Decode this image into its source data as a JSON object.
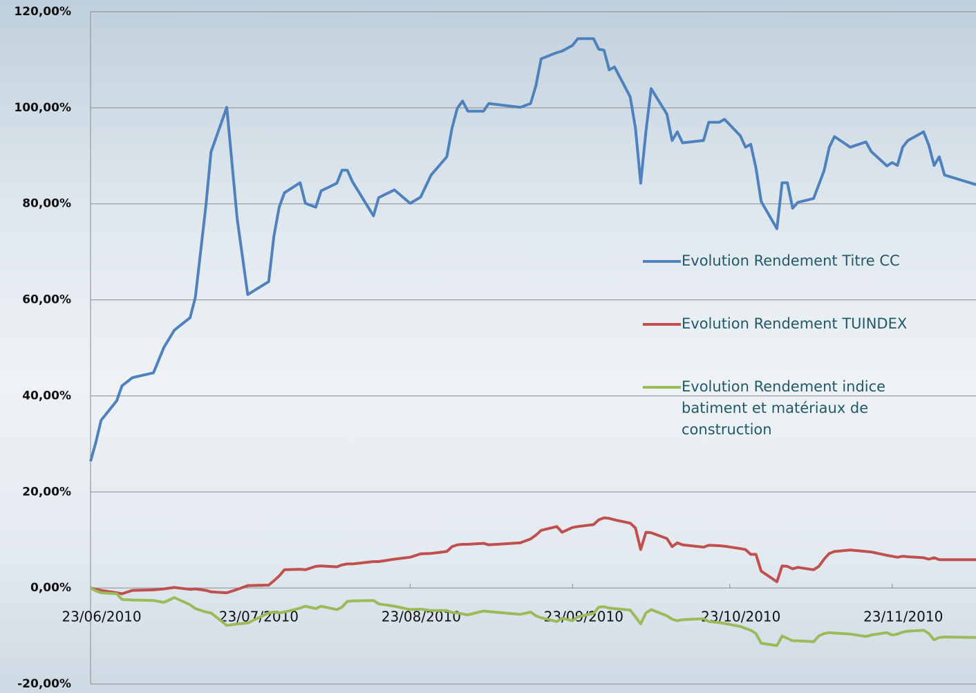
{
  "chart_data": {
    "type": "line",
    "x": [
      "23/06/2010",
      "24/06/2010",
      "25/06/2010",
      "28/06/2010",
      "29/06/2010",
      "01/07/2010",
      "05/07/2010",
      "07/07/2010",
      "09/07/2010",
      "12/07/2010",
      "13/07/2010",
      "15/07/2010",
      "16/07/2010",
      "19/07/2010",
      "21/07/2010",
      "23/07/2010",
      "27/07/2010",
      "28/07/2010",
      "29/07/2010",
      "30/07/2010",
      "02/08/2010",
      "03/08/2010",
      "05/08/2010",
      "06/08/2010",
      "09/08/2010",
      "10/08/2010",
      "11/08/2010",
      "12/08/2010",
      "16/08/2010",
      "17/08/2010",
      "20/08/2010",
      "23/08/2010",
      "25/08/2010",
      "27/08/2010",
      "30/08/2010",
      "31/08/2010",
      "01/09/2010",
      "02/09/2010",
      "03/09/2010",
      "06/09/2010",
      "07/09/2010",
      "13/09/2010",
      "15/09/2010",
      "16/09/2010",
      "17/09/2010",
      "20/09/2010",
      "21/09/2010",
      "23/09/2010",
      "24/09/2010",
      "27/09/2010",
      "28/09/2010",
      "29/09/2010",
      "30/09/2010",
      "01/10/2010",
      "04/10/2010",
      "05/10/2010",
      "06/10/2010",
      "07/10/2010",
      "08/10/2010",
      "11/10/2010",
      "12/10/2010",
      "13/10/2010",
      "14/10/2010",
      "18/10/2010",
      "19/10/2010",
      "21/10/2010",
      "22/10/2010",
      "25/10/2010",
      "26/10/2010",
      "27/10/2010",
      "28/10/2010",
      "29/10/2010",
      "01/11/2010",
      "02/11/2010",
      "03/11/2010",
      "04/11/2010",
      "05/11/2010",
      "08/11/2010",
      "09/11/2010",
      "10/11/2010",
      "11/11/2010",
      "12/11/2010",
      "15/11/2010",
      "18/11/2010",
      "19/11/2010",
      "22/11/2010",
      "23/11/2010",
      "24/11/2010",
      "25/11/2010",
      "26/11/2010",
      "29/11/2010",
      "30/11/2010",
      "01/12/2010",
      "02/12/2010",
      "03/12/2010",
      "09/12/2010"
    ],
    "series": [
      {
        "name": "Evolution Rendement Titre CC",
        "color": "#4f81bd",
        "values": [
          26.4,
          30.3,
          34.9,
          39.0,
          42.1,
          43.8,
          44.8,
          50.1,
          53.7,
          56.3,
          60.5,
          79.5,
          90.8,
          100.1,
          76.8,
          61.1,
          63.8,
          73.3,
          79.3,
          82.3,
          84.4,
          80.1,
          79.3,
          82.7,
          84.3,
          87.0,
          87.0,
          84.6,
          77.5,
          81.3,
          82.9,
          80.1,
          81.4,
          86.0,
          89.8,
          95.8,
          99.9,
          101.4,
          99.3,
          99.3,
          100.9,
          100.1,
          100.9,
          104.6,
          110.2,
          111.5,
          111.8,
          113.0,
          114.4,
          114.4,
          112.2,
          112.0,
          107.9,
          108.5,
          102.3,
          95.8,
          84.3,
          95.1,
          104.0,
          98.7,
          93.2,
          95.0,
          92.7,
          93.2,
          97.0,
          97.0,
          97.6,
          94.2,
          91.8,
          92.4,
          87.5,
          80.5,
          74.8,
          84.4,
          84.4,
          79.1,
          80.3,
          81.1,
          84.0,
          86.9,
          91.8,
          94.0,
          91.8,
          92.9,
          90.9,
          87.9,
          88.6,
          88.0,
          91.8,
          93.2,
          95.0,
          92.2,
          88.0,
          89.8,
          86.0,
          84.0
        ]
      },
      {
        "name": "Evolution Rendement TUINDEX",
        "color": "#c0504d",
        "values": [
          0,
          -0.3,
          -0.5,
          -1.0,
          -1.2,
          -0.5,
          -0.4,
          -0.2,
          0.1,
          -0.3,
          -0.2,
          -0.5,
          -0.8,
          -1.0,
          -0.3,
          0.5,
          0.6,
          1.5,
          2.5,
          3.8,
          3.9,
          3.8,
          4.5,
          4.6,
          4.4,
          4.8,
          5.0,
          5.0,
          5.5,
          5.5,
          6.0,
          6.4,
          7.1,
          7.2,
          7.6,
          8.6,
          9.0,
          9.1,
          9.1,
          9.3,
          9.0,
          9.4,
          10.2,
          11.0,
          12.0,
          12.8,
          11.6,
          12.6,
          12.8,
          13.2,
          14.2,
          14.6,
          14.5,
          14.2,
          13.5,
          12.5,
          8.0,
          11.6,
          11.5,
          10.3,
          8.6,
          9.4,
          9.0,
          8.5,
          8.9,
          8.8,
          8.7,
          8.2,
          8.0,
          7.0,
          7.0,
          3.5,
          1.3,
          4.6,
          4.5,
          4.0,
          4.3,
          3.8,
          4.5,
          6.0,
          7.2,
          7.6,
          7.9,
          7.6,
          7.5,
          6.8,
          6.6,
          6.4,
          6.6,
          6.5,
          6.3,
          6.0,
          6.3,
          5.9,
          5.9,
          5.9
        ]
      },
      {
        "name": "Evolution Rendement indice batiment et matériaux de construction",
        "color": "#9bbb59",
        "values": [
          0,
          -0.6,
          -1,
          -1.2,
          -2.4,
          -2.5,
          -2.6,
          -3.0,
          -2.0,
          -3.5,
          -4.3,
          -5.0,
          -5.2,
          -7.8,
          -7.5,
          -7.3,
          -5.2,
          -5.0,
          -5.2,
          -5.0,
          -4.2,
          -3.8,
          -4.3,
          -3.8,
          -4.5,
          -4.0,
          -2.8,
          -2.7,
          -2.6,
          -3.3,
          -3.8,
          -4.5,
          -4.4,
          -4.7,
          -4.7,
          -5.1,
          -5.2,
          -5.4,
          -5.6,
          -4.8,
          -4.9,
          -5.5,
          -5.0,
          -5.8,
          -6.2,
          -7.0,
          -6.3,
          -6.8,
          -6.0,
          -5.3,
          -4.0,
          -3.9,
          -4.2,
          -4.3,
          -4.6,
          -6.0,
          -7.5,
          -5.2,
          -4.5,
          -5.8,
          -6.5,
          -6.8,
          -6.6,
          -6.4,
          -7.0,
          -7.2,
          -7.4,
          -8.0,
          -8.4,
          -8.8,
          -9.5,
          -11.5,
          -12.0,
          -10.0,
          -10.5,
          -11.0,
          -11.0,
          -11.2,
          -10.0,
          -9.5,
          -9.3,
          -9.4,
          -9.6,
          -10.1,
          -9.8,
          -9.3,
          -9.8,
          -9.6,
          -9.2,
          -9.0,
          -8.8,
          -9.5,
          -10.8,
          -10.3,
          -10.2,
          -10.3
        ]
      }
    ],
    "xlim": [
      "23/06/2010",
      "09/12/2010"
    ],
    "xticks": [
      "23/06/2010",
      "23/07/2010",
      "23/08/2010",
      "23/09/2010",
      "23/10/2010",
      "23/11/2010"
    ],
    "ylim": [
      -20,
      120
    ],
    "yticks": [
      {
        "value": -20,
        "label": "-20,00%"
      },
      {
        "value": 0,
        "label": "0,00%"
      },
      {
        "value": 20,
        "label": "20,00%"
      },
      {
        "value": 40,
        "label": "40,00%"
      },
      {
        "value": 60,
        "label": "60,00%"
      },
      {
        "value": 80,
        "label": "80,00%"
      },
      {
        "value": 100,
        "label": "100,00%"
      },
      {
        "value": 120,
        "label": "120,00%"
      }
    ],
    "grid": true,
    "legend_position": "right"
  }
}
